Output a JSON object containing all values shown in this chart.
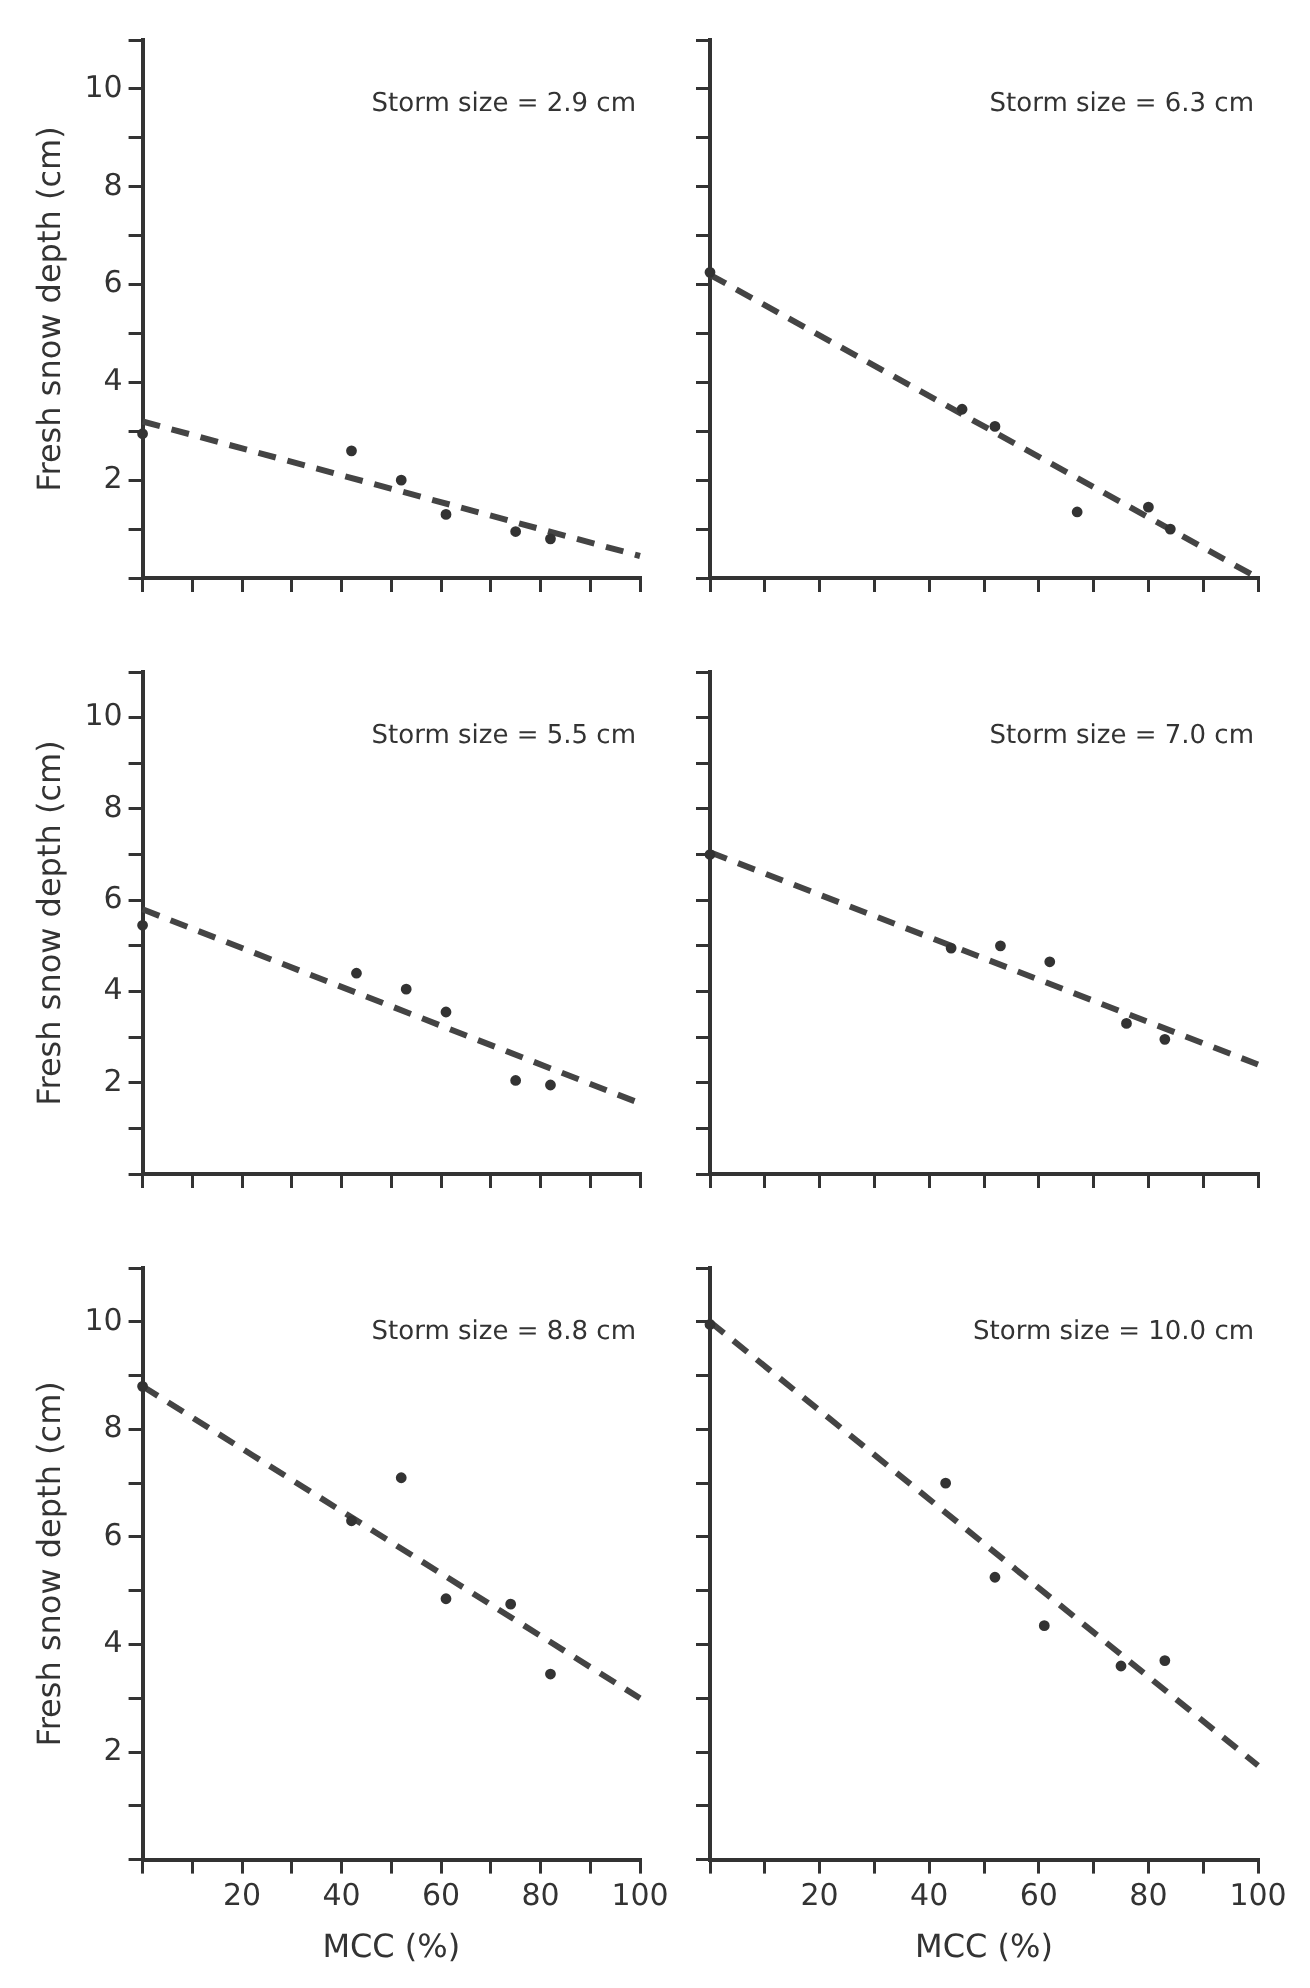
{
  "chart_data": [
    {
      "type": "scatter",
      "ylabel": "Fresh snow depth (cm)",
      "annotations": [
        "Storm size = 2.9 cm"
      ],
      "xlim": [
        0,
        100
      ],
      "ylim": [
        0,
        11
      ],
      "xticks": [
        {
          "value": 0,
          "label": null
        },
        {
          "value": 10,
          "label": null
        },
        20,
        {
          "value": 30,
          "label": null
        },
        40,
        {
          "value": 50,
          "label": null
        },
        60,
        {
          "value": 70,
          "label": null
        },
        80,
        {
          "value": 90,
          "label": null
        },
        100
      ],
      "yticks": [
        {
          "value": 0,
          "label": null
        },
        {
          "value": 1,
          "label": null
        },
        2,
        {
          "value": 3,
          "label": null
        },
        4,
        {
          "value": 5,
          "label": null
        },
        6,
        {
          "value": 7,
          "label": null
        },
        8,
        {
          "value": 9,
          "label": null
        },
        10,
        {
          "value": 11,
          "label": null
        }
      ],
      "tick_labels": "y",
      "marker": "circle",
      "series": [
        {
          "color": "#333333",
          "x": [
            0,
            42,
            52,
            61,
            75,
            82
          ],
          "values": [
            2.95,
            2.6,
            2.0,
            1.3,
            0.95,
            0.8
          ]
        },
        {
          "type": "line",
          "color": "#444444",
          "marker": "none",
          "line_style": "dashed",
          "x": [
            0,
            100
          ],
          "values": [
            3.2,
            0.45
          ]
        }
      ]
    },
    {
      "type": "scatter",
      "annotations": [
        "Storm size = 6.3 cm"
      ],
      "xlim": [
        0,
        100
      ],
      "ylim": [
        0,
        11
      ],
      "xticks": [
        {
          "value": 0,
          "label": null
        },
        {
          "value": 10,
          "label": null
        },
        20,
        {
          "value": 30,
          "label": null
        },
        40,
        {
          "value": 50,
          "label": null
        },
        60,
        {
          "value": 70,
          "label": null
        },
        80,
        {
          "value": 90,
          "label": null
        },
        100
      ],
      "yticks": [
        {
          "value": 0,
          "label": null
        },
        {
          "value": 1,
          "label": null
        },
        2,
        {
          "value": 3,
          "label": null
        },
        4,
        {
          "value": 5,
          "label": null
        },
        6,
        {
          "value": 7,
          "label": null
        },
        8,
        {
          "value": 9,
          "label": null
        },
        10,
        {
          "value": 11,
          "label": null
        }
      ],
      "tick_labels": false,
      "marker": "circle",
      "series": [
        {
          "color": "#333333",
          "x": [
            0,
            46,
            52,
            67,
            80,
            84
          ],
          "values": [
            6.25,
            3.45,
            3.1,
            1.35,
            1.45,
            1.0
          ]
        },
        {
          "type": "line",
          "color": "#444444",
          "marker": "none",
          "line_style": "dashed",
          "x": [
            0,
            100
          ],
          "values": [
            6.2,
            0
          ]
        }
      ]
    },
    {
      "type": "scatter",
      "ylabel": "Fresh snow depth (cm)",
      "annotations": [
        "Storm size = 5.5 cm"
      ],
      "xlim": [
        0,
        100
      ],
      "ylim": [
        0,
        11
      ],
      "xticks": [
        {
          "value": 0,
          "label": null
        },
        {
          "value": 10,
          "label": null
        },
        20,
        {
          "value": 30,
          "label": null
        },
        40,
        {
          "value": 50,
          "label": null
        },
        60,
        {
          "value": 70,
          "label": null
        },
        80,
        {
          "value": 90,
          "label": null
        },
        100
      ],
      "yticks": [
        {
          "value": 0,
          "label": null
        },
        {
          "value": 1,
          "label": null
        },
        2,
        {
          "value": 3,
          "label": null
        },
        4,
        {
          "value": 5,
          "label": null
        },
        6,
        {
          "value": 7,
          "label": null
        },
        8,
        {
          "value": 9,
          "label": null
        },
        10,
        {
          "value": 11,
          "label": null
        }
      ],
      "tick_labels": "y",
      "marker": "circle",
      "series": [
        {
          "color": "#333333",
          "x": [
            0,
            43,
            53,
            61,
            75,
            82
          ],
          "values": [
            5.45,
            4.4,
            4.05,
            3.55,
            2.05,
            1.95
          ]
        },
        {
          "type": "line",
          "color": "#444444",
          "marker": "none",
          "line_style": "dashed",
          "x": [
            0,
            100
          ],
          "values": [
            5.8,
            1.55
          ]
        }
      ]
    },
    {
      "type": "scatter",
      "annotations": [
        "Storm size = 7.0 cm"
      ],
      "xlim": [
        0,
        100
      ],
      "ylim": [
        0,
        11
      ],
      "xticks": [
        {
          "value": 0,
          "label": null
        },
        {
          "value": 10,
          "label": null
        },
        20,
        {
          "value": 30,
          "label": null
        },
        40,
        {
          "value": 50,
          "label": null
        },
        60,
        {
          "value": 70,
          "label": null
        },
        80,
        {
          "value": 90,
          "label": null
        },
        100
      ],
      "yticks": [
        {
          "value": 0,
          "label": null
        },
        {
          "value": 1,
          "label": null
        },
        2,
        {
          "value": 3,
          "label": null
        },
        4,
        {
          "value": 5,
          "label": null
        },
        6,
        {
          "value": 7,
          "label": null
        },
        8,
        {
          "value": 9,
          "label": null
        },
        10,
        {
          "value": 11,
          "label": null
        }
      ],
      "tick_labels": false,
      "marker": "circle",
      "series": [
        {
          "color": "#333333",
          "x": [
            0,
            44,
            53,
            62,
            76,
            83
          ],
          "values": [
            7.0,
            4.95,
            5.0,
            4.65,
            3.3,
            2.95
          ]
        },
        {
          "type": "line",
          "color": "#444444",
          "marker": "none",
          "line_style": "dashed",
          "x": [
            0,
            100
          ],
          "values": [
            7.05,
            2.4
          ]
        }
      ]
    },
    {
      "type": "scatter",
      "xlabel": "MCC (%)",
      "ylabel": "Fresh snow depth (cm)",
      "annotations": [
        "Storm size = 8.8 cm"
      ],
      "xlim": [
        0,
        100
      ],
      "ylim": [
        0,
        11
      ],
      "xticks": [
        {
          "value": 0,
          "label": null
        },
        {
          "value": 10,
          "label": null
        },
        20,
        {
          "value": 30,
          "label": null
        },
        40,
        {
          "value": 50,
          "label": null
        },
        60,
        {
          "value": 70,
          "label": null
        },
        80,
        {
          "value": 90,
          "label": null
        },
        100
      ],
      "yticks": [
        {
          "value": 0,
          "label": null
        },
        {
          "value": 1,
          "label": null
        },
        2,
        {
          "value": 3,
          "label": null
        },
        4,
        {
          "value": 5,
          "label": null
        },
        6,
        {
          "value": 7,
          "label": null
        },
        8,
        {
          "value": 9,
          "label": null
        },
        10,
        {
          "value": 11,
          "label": null
        }
      ],
      "marker": "circle",
      "series": [
        {
          "color": "#333333",
          "x": [
            0,
            42,
            52,
            61,
            74,
            82
          ],
          "values": [
            8.8,
            6.3,
            7.1,
            4.85,
            4.75,
            3.45
          ]
        },
        {
          "type": "line",
          "color": "#444444",
          "marker": "none",
          "line_style": "dashed",
          "x": [
            0,
            100
          ],
          "values": [
            8.8,
            3.0
          ]
        }
      ]
    },
    {
      "type": "scatter",
      "xlabel": "MCC (%)",
      "annotations": [
        "Storm size = 10.0 cm"
      ],
      "xlim": [
        0,
        100
      ],
      "ylim": [
        0,
        11
      ],
      "xticks": [
        {
          "value": 0,
          "label": null
        },
        {
          "value": 10,
          "label": null
        },
        20,
        {
          "value": 30,
          "label": null
        },
        40,
        {
          "value": 50,
          "label": null
        },
        60,
        {
          "value": 70,
          "label": null
        },
        80,
        {
          "value": 90,
          "label": null
        },
        100
      ],
      "yticks": [
        {
          "value": 0,
          "label": null
        },
        {
          "value": 1,
          "label": null
        },
        2,
        {
          "value": 3,
          "label": null
        },
        4,
        {
          "value": 5,
          "label": null
        },
        6,
        {
          "value": 7,
          "label": null
        },
        8,
        {
          "value": 9,
          "label": null
        },
        10,
        {
          "value": 11,
          "label": null
        }
      ],
      "tick_labels": "x",
      "marker": "circle",
      "series": [
        {
          "color": "#333333",
          "x": [
            0,
            43,
            52,
            61,
            75,
            83
          ],
          "values": [
            9.95,
            7.0,
            5.25,
            4.35,
            3.6,
            3.7
          ]
        },
        {
          "type": "line",
          "color": "#444444",
          "marker": "none",
          "line_style": "dashed",
          "x": [
            0,
            100
          ],
          "values": [
            10.0,
            1.75
          ]
        }
      ]
    }
  ]
}
